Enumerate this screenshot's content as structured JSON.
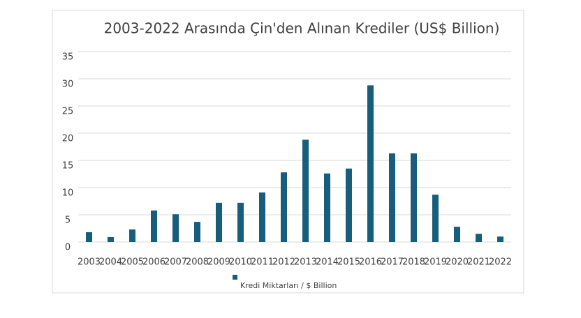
{
  "chart_data": {
    "type": "bar",
    "title": "2003-2022 Arasında Çin'den Alınan Krediler (US$ Billion)",
    "categories": [
      "2003",
      "2004",
      "2005",
      "2006",
      "2007",
      "2008",
      "2009",
      "2010",
      "2011",
      "2012",
      "2013",
      "2014",
      "2015",
      "2016",
      "2017",
      "2018",
      "2019",
      "2020",
      "2021",
      "2022"
    ],
    "series": [
      {
        "name": "Kredi Miktarları / $ Billion",
        "color": "#165e7c",
        "values": [
          1.8,
          0.9,
          2.3,
          5.8,
          5.1,
          3.7,
          7.2,
          7.2,
          9.1,
          12.8,
          18.8,
          12.6,
          13.5,
          28.8,
          16.3,
          16.3,
          8.7,
          2.8,
          1.5,
          1.0
        ]
      }
    ],
    "ylim": [
      0,
      35
    ],
    "yticks": [
      0,
      5,
      10,
      15,
      20,
      25,
      30,
      35
    ],
    "grid": true,
    "legend": "bottom"
  }
}
